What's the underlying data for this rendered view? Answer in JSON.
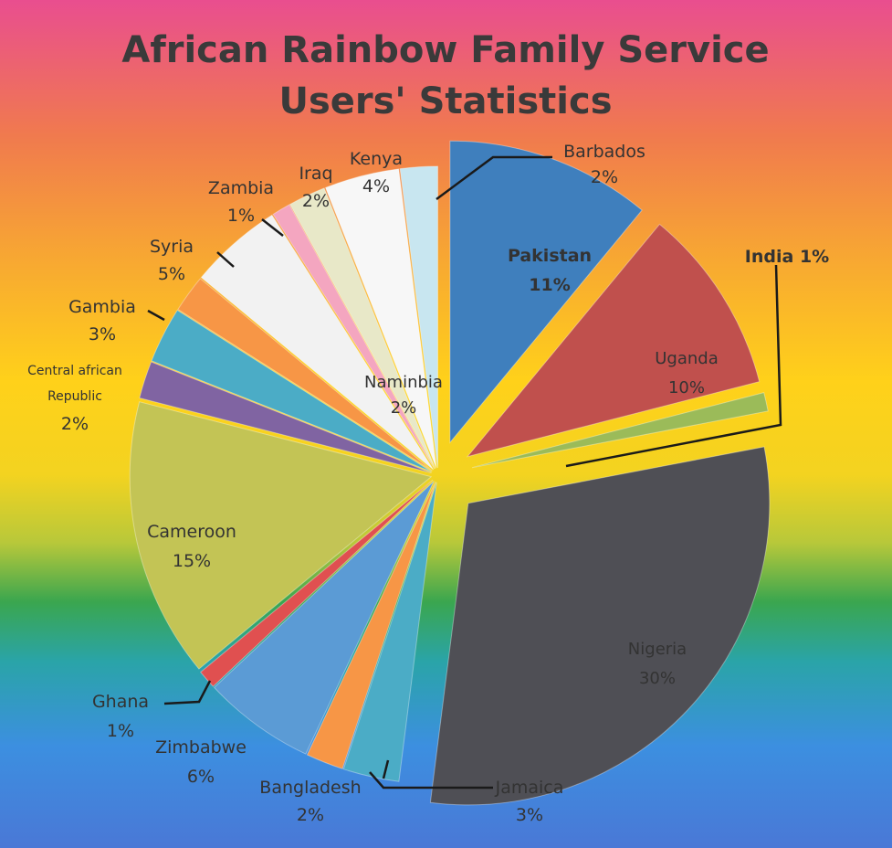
{
  "chart_data": {
    "type": "pie",
    "title_lines": [
      "African Rainbow Family Service",
      "Users' Statistics"
    ],
    "slices": [
      {
        "label": "Pakistan",
        "value_label": "11%",
        "value": 11,
        "color": "#3f7fbd",
        "explode": 38
      },
      {
        "label": "Uganda",
        "value_label": "10%",
        "value": 10,
        "color": "#c0504d",
        "explode": 38
      },
      {
        "label": "India 1%",
        "value_label": "",
        "value": 1,
        "color": "#9bbb59",
        "explode": 38
      },
      {
        "label": "Nigeria",
        "value_label": "30%",
        "value": 30,
        "color": "#4f4f55",
        "explode": 45
      },
      {
        "label": "Jamaica",
        "value_label": "3%",
        "value": 3,
        "color": "#4bacc6",
        "explode": 8
      },
      {
        "label": "Bangladesh",
        "value_label": "2%",
        "value": 2,
        "color": "#f79646",
        "explode": 8
      },
      {
        "label": "Zimbabwe",
        "value_label": "6%",
        "value": 6,
        "color": "#5b9bd5",
        "explode": 8
      },
      {
        "label": "Ghana",
        "value_label": "1%",
        "value": 1,
        "color": "#e05050",
        "explode": 8
      },
      {
        "label": "Cameroon",
        "value_label": "15%",
        "value": 15,
        "color": "#c3c455",
        "explode": 8
      },
      {
        "label": "Central african Republic",
        "value_label": "2%",
        "value": 2,
        "color": "#8064a2",
        "explode": 8
      },
      {
        "label": "Gambia",
        "value_label": "3%",
        "value": 3,
        "color": "#4bacc6",
        "explode": 8
      },
      {
        "label": "Naminbia",
        "value_label": "2%",
        "value": 2,
        "color": "#f79646",
        "explode": 8
      },
      {
        "label": "Syria",
        "value_label": "5%",
        "value": 5,
        "color": "#f2f2f2",
        "explode": 8
      },
      {
        "label": "Zambia",
        "value_label": "1%",
        "value": 1,
        "color": "#f4a6c0",
        "explode": 8
      },
      {
        "label": "Iraq",
        "value_label": "2%",
        "value": 2,
        "color": "#e8e8c8",
        "explode": 8
      },
      {
        "label": "Kenya",
        "value_label": "4%",
        "value": 4,
        "color": "#f7f7f7",
        "explode": 8
      },
      {
        "label": "Barbados",
        "value_label": "2%",
        "value": 2,
        "color": "#c8e6f0",
        "explode": 8
      }
    ],
    "background_gradient": [
      "#e94e8f",
      "#f07a4e",
      "#f7a633",
      "#ffd11a",
      "#f3d320",
      "#b8c83a",
      "#3aa64f",
      "#2aa4a8",
      "#3c8fe0",
      "#4a78d6"
    ]
  }
}
